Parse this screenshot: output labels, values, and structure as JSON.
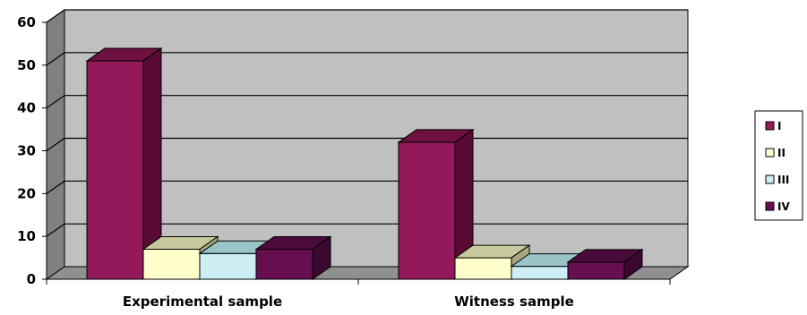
{
  "chart_data": {
    "type": "bar",
    "categories": [
      "Experimental sample",
      "Witness sample"
    ],
    "series": [
      {
        "name": "I",
        "values": [
          51,
          32
        ],
        "color": "#93195A",
        "top_color": "#6E1040",
        "side_color": "#5A0A33"
      },
      {
        "name": "II",
        "values": [
          7,
          5
        ],
        "color": "#FFFFCC",
        "top_color": "#C9C99E",
        "side_color": "#A8A880"
      },
      {
        "name": "III",
        "values": [
          6,
          3
        ],
        "color": "#CCEEF4",
        "top_color": "#99C4C8",
        "side_color": "#7FA8AD"
      },
      {
        "name": "IV",
        "values": [
          7,
          4
        ],
        "color": "#660E50",
        "top_color": "#4A0A3A",
        "side_color": "#3A0830"
      }
    ],
    "yticks": [
      "0",
      "10",
      "20",
      "30",
      "40",
      "50",
      "60"
    ],
    "ylim": [
      0,
      60
    ],
    "grid": true,
    "legend": "right",
    "plot_background": "#C0C0C0",
    "wall_side_color": "#808080",
    "floor_color": "#909090"
  }
}
